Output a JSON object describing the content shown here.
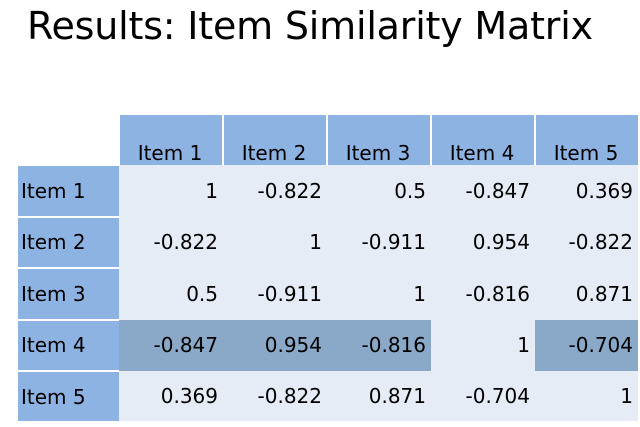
{
  "title": "Results: Item Similarity Matrix",
  "matrix": {
    "columns": [
      "Item 1",
      "Item 2",
      "Item 3",
      "Item 4",
      "Item 5"
    ],
    "rows": [
      {
        "label": "Item 1",
        "values": [
          "1",
          "-0.822",
          "0.5",
          "-0.847",
          "0.369"
        ]
      },
      {
        "label": "Item 2",
        "values": [
          "-0.822",
          "1",
          "-0.911",
          "0.954",
          "-0.822"
        ]
      },
      {
        "label": "Item 3",
        "values": [
          "0.5",
          "-0.911",
          "1",
          "-0.816",
          "0.871"
        ]
      },
      {
        "label": "Item 4",
        "values": [
          "-0.847",
          "0.954",
          "-0.816",
          "1",
          "-0.704"
        ],
        "highlighted": [
          0,
          1,
          2,
          4
        ]
      },
      {
        "label": "Item 5",
        "values": [
          "0.369",
          "-0.822",
          "0.871",
          "-0.704",
          "1"
        ]
      }
    ]
  },
  "colors": {
    "header_fill": "#8db3e2",
    "cell_fill": "#e6ecf5",
    "highlight_fill": "#8aa8c7"
  }
}
